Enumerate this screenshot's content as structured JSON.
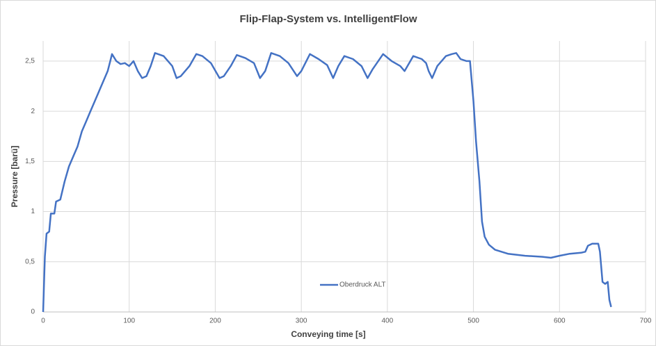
{
  "chart_data": {
    "type": "line",
    "title": "Flip-Flap-System vs.  IntelligentFlow",
    "x_label": "Conveying time [s]",
    "y_label": "Pressure [barü]",
    "x": [
      0,
      2,
      4,
      7,
      9,
      13,
      15,
      20,
      25,
      30,
      35,
      40,
      45,
      50,
      55,
      60,
      65,
      70,
      75,
      78,
      80,
      85,
      90,
      95,
      100,
      105,
      110,
      115,
      120,
      125,
      130,
      140,
      150,
      155,
      160,
      170,
      178,
      185,
      195,
      205,
      210,
      218,
      225,
      235,
      245,
      252,
      258,
      265,
      275,
      285,
      295,
      300,
      310,
      320,
      330,
      337,
      343,
      350,
      360,
      370,
      377,
      383,
      395,
      405,
      415,
      420,
      430,
      440,
      445,
      448,
      452,
      458,
      468,
      475,
      480,
      485,
      492,
      496,
      500,
      503,
      507,
      510,
      513,
      518,
      525,
      540,
      560,
      580,
      590,
      600,
      612,
      625,
      630,
      633,
      638,
      645,
      647,
      650,
      653,
      656,
      658,
      660
    ],
    "series": [
      {
        "name": "Oberdruck ALT",
        "color": "#4472c4",
        "values": [
          0,
          0.55,
          0.78,
          0.8,
          0.98,
          0.98,
          1.1,
          1.12,
          1.3,
          1.45,
          1.55,
          1.65,
          1.8,
          1.9,
          2.0,
          2.1,
          2.2,
          2.3,
          2.4,
          2.5,
          2.57,
          2.5,
          2.47,
          2.48,
          2.45,
          2.5,
          2.4,
          2.33,
          2.35,
          2.45,
          2.58,
          2.55,
          2.45,
          2.33,
          2.35,
          2.45,
          2.57,
          2.55,
          2.48,
          2.33,
          2.35,
          2.45,
          2.56,
          2.53,
          2.48,
          2.33,
          2.4,
          2.58,
          2.55,
          2.48,
          2.35,
          2.4,
          2.57,
          2.52,
          2.46,
          2.33,
          2.45,
          2.55,
          2.52,
          2.45,
          2.33,
          2.42,
          2.57,
          2.5,
          2.45,
          2.4,
          2.55,
          2.52,
          2.48,
          2.4,
          2.33,
          2.45,
          2.55,
          2.57,
          2.58,
          2.52,
          2.5,
          2.5,
          2.1,
          1.7,
          1.3,
          0.9,
          0.75,
          0.67,
          0.62,
          0.58,
          0.56,
          0.55,
          0.54,
          0.56,
          0.58,
          0.59,
          0.6,
          0.66,
          0.68,
          0.68,
          0.6,
          0.3,
          0.28,
          0.3,
          0.12,
          0.05
        ]
      }
    ],
    "xlim": [
      0,
      700
    ],
    "xticks": [
      0,
      100,
      200,
      300,
      400,
      500,
      600,
      700
    ],
    "ylim": [
      0,
      2.7
    ],
    "yticks": [
      0,
      {
        "value": 0.5,
        "label": "0,5"
      },
      1,
      {
        "value": 1.5,
        "label": "1,5"
      },
      2,
      {
        "value": 2.5,
        "label": "2,5"
      }
    ],
    "grid": true
  }
}
